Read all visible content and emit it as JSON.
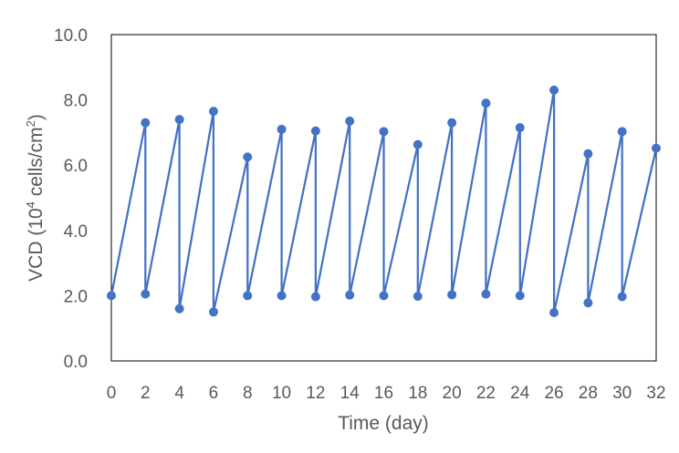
{
  "chart_data": {
    "type": "line",
    "title": "",
    "xlabel": "Time (day)",
    "ylabel_parts": {
      "prefix": "VCD (10",
      "superscript1": "4",
      "middle": " cells/cm",
      "superscript2": "2",
      "suffix": ")"
    },
    "xlim": [
      0,
      32
    ],
    "ylim": [
      0,
      10
    ],
    "x_ticks": [
      "0",
      "2",
      "4",
      "6",
      "8",
      "10",
      "12",
      "14",
      "16",
      "18",
      "20",
      "22",
      "24",
      "26",
      "28",
      "30",
      "32"
    ],
    "y_ticks": [
      "0.0",
      "2.0",
      "4.0",
      "6.0",
      "8.0",
      "10.0"
    ],
    "grid": false,
    "legend": "none",
    "series": [
      {
        "color": "#4472C4",
        "x": [
          0,
          2,
          2,
          4,
          4,
          6,
          6,
          8,
          8,
          10,
          10,
          12,
          12,
          14,
          14,
          16,
          16,
          18,
          18,
          20,
          20,
          22,
          22,
          24,
          24,
          26,
          26,
          28,
          28,
          30,
          30,
          32
        ],
        "y": [
          2.0,
          7.3,
          2.05,
          7.4,
          1.6,
          7.65,
          1.5,
          6.25,
          2.0,
          7.1,
          2.0,
          7.05,
          1.97,
          7.35,
          2.02,
          7.03,
          2.0,
          6.63,
          1.98,
          7.3,
          2.03,
          7.9,
          2.05,
          7.15,
          2.0,
          8.3,
          1.48,
          6.35,
          1.78,
          7.03,
          1.97,
          6.52
        ]
      }
    ]
  }
}
